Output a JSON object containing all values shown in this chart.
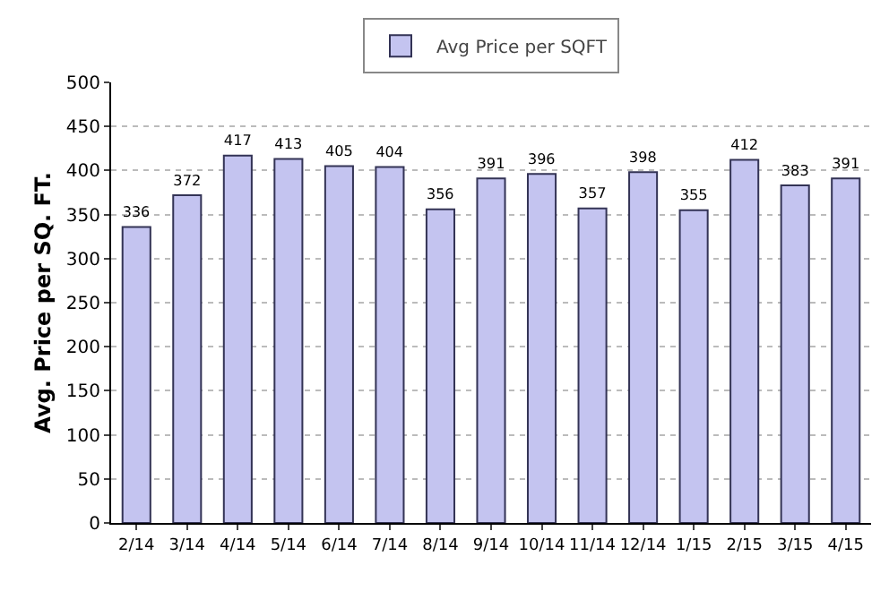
{
  "chart_data": {
    "type": "bar",
    "ylabel": "Avg. Price per SQ. FT.",
    "categories": [
      "2/14",
      "3/14",
      "4/14",
      "5/14",
      "6/14",
      "7/14",
      "8/14",
      "9/14",
      "10/14",
      "11/14",
      "12/14",
      "1/15",
      "2/15",
      "3/15",
      "4/15"
    ],
    "series": [
      {
        "name": "Avg Price per SQFT",
        "color": "#c4c4f0",
        "values": [
          336,
          372,
          417,
          413,
          405,
          404,
          356,
          391,
          396,
          357,
          398,
          355,
          412,
          383,
          391
        ]
      }
    ],
    "ylim": [
      0,
      500
    ],
    "yticks": [
      0,
      50,
      100,
      150,
      200,
      250,
      300,
      350,
      400,
      450,
      500
    ],
    "grid": "y",
    "legend": "top",
    "data_labels": true
  }
}
